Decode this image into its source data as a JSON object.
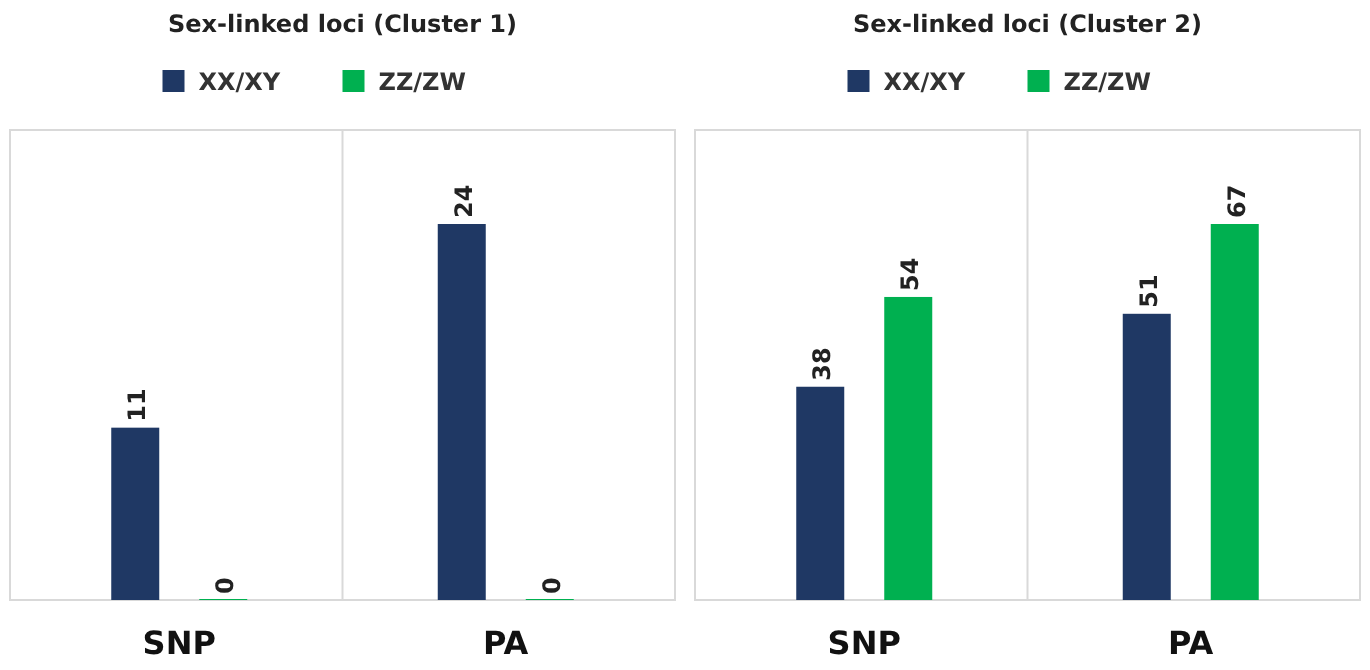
{
  "chart_data": [
    {
      "type": "bar",
      "title": "Sex-linked loci (Cluster 1)",
      "categories": [
        "SNP",
        "PA"
      ],
      "series": [
        {
          "name": "XX/XY",
          "color": "#1f3864",
          "values": [
            11,
            24
          ]
        },
        {
          "name": "ZZ/ZW",
          "color": "#00b050",
          "values": [
            0,
            0
          ]
        }
      ],
      "data_labels": true,
      "legend": "top"
    },
    {
      "type": "bar",
      "title": "Sex-linked loci (Cluster 2)",
      "categories": [
        "SNP",
        "PA"
      ],
      "series": [
        {
          "name": "XX/XY",
          "color": "#1f3864",
          "values": [
            38,
            51
          ]
        },
        {
          "name": "ZZ/ZW",
          "color": "#00b050",
          "values": [
            54,
            67
          ]
        }
      ],
      "data_labels": true,
      "legend": "top"
    }
  ]
}
